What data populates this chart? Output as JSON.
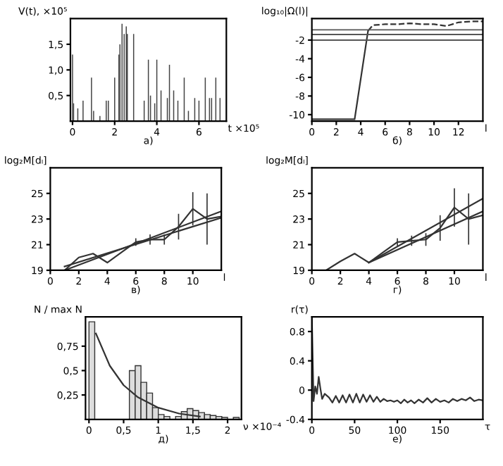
{
  "chart_data": [
    {
      "type": "bar",
      "x": [
        0.0,
        0.05,
        0.25,
        0.5,
        0.9,
        1.0,
        1.3,
        1.6,
        1.7,
        2.0,
        2.2,
        2.25,
        2.35,
        2.45,
        2.55,
        2.6,
        2.9,
        3.4,
        3.6,
        3.7,
        3.9,
        4.0,
        4.2,
        4.5,
        4.6,
        4.8,
        5.0,
        5.3,
        5.5,
        5.8,
        6.0,
        6.3,
        6.5,
        6.6,
        6.8,
        7.0
      ],
      "values": [
        1.3,
        0.35,
        0.25,
        0.4,
        0.85,
        0.2,
        0.1,
        0.4,
        0.4,
        0.85,
        1.3,
        1.5,
        1.9,
        1.7,
        1.85,
        1.7,
        1.7,
        0.4,
        1.2,
        0.5,
        0.35,
        1.2,
        0.6,
        0.45,
        1.1,
        0.6,
        0.4,
        0.85,
        0.2,
        0.45,
        0.4,
        0.85,
        0.45,
        0.45,
        0.85,
        0.45
      ],
      "color": "#444444",
      "xlim": [
        -0.1,
        7.3
      ],
      "ylim": [
        0,
        2
      ],
      "xticks": [
        0,
        2,
        4,
        6
      ],
      "yticks": [
        {
          "value": 0.5,
          "label": "0,5"
        },
        {
          "value": 1.0,
          "label": "1,0"
        },
        {
          "value": 1.5,
          "label": "1,5"
        }
      ],
      "ylabel": "V(t), ×10⁵",
      "xlabel": "t ×10⁵",
      "annotations": [
        "а)"
      ]
    },
    {
      "type": "line",
      "xlim": [
        0,
        14
      ],
      "ylim": [
        -10.7,
        0.3
      ],
      "xticks": [
        0,
        2,
        4,
        6,
        8,
        10,
        12
      ],
      "yticks": [
        -10,
        -8,
        -6,
        -4,
        -2
      ],
      "series": [
        {
          "color": "#333333",
          "line_style": "solid",
          "x": [
            0,
            3.5,
            4.6
          ],
          "values": [
            -10.5,
            -10.5,
            -1
          ]
        },
        {
          "color": "#333333",
          "line_style": "dashed",
          "x": [
            4.6,
            5,
            6,
            7,
            8,
            9,
            10,
            11,
            12,
            13,
            14
          ],
          "values": [
            -1,
            -0.4,
            -0.3,
            -0.3,
            -0.2,
            -0.3,
            -0.3,
            -0.5,
            -0.1,
            0,
            0
          ]
        }
      ],
      "ref_lines": [
        {
          "axis": "y",
          "value": -0.9,
          "color": "#555555"
        },
        {
          "axis": "y",
          "value": -1.4,
          "color": "#555555"
        },
        {
          "axis": "y",
          "value": -2,
          "color": "#555555"
        }
      ],
      "ylabel": "log₁₀|Ω(l)|",
      "xlabel": "l",
      "annotations": [
        "б)"
      ]
    },
    {
      "type": "line",
      "xlim": [
        0,
        12
      ],
      "ylim": [
        19,
        27
      ],
      "xticks": [
        0,
        2,
        4,
        6,
        8,
        10
      ],
      "yticks": [
        19,
        21,
        23,
        25
      ],
      "series": [
        {
          "color": "#333333",
          "x": [
            1,
            2,
            3,
            4,
            5,
            6,
            7,
            8,
            9,
            10,
            11,
            12
          ],
          "values": [
            19,
            20,
            20.3,
            19.6,
            20.4,
            21.2,
            21.4,
            21.4,
            22.4,
            23.8,
            23,
            23.2
          ],
          "errors": [
            null,
            null,
            null,
            null,
            null,
            0.3,
            0.4,
            0.4,
            1,
            1.3,
            2,
            0.2
          ]
        },
        {
          "color": "#333333",
          "x": [
            1,
            12
          ],
          "values": [
            19,
            23.6
          ]
        },
        {
          "color": "#333333",
          "x": [
            1,
            12
          ],
          "values": [
            19.3,
            23.1
          ]
        }
      ],
      "ylabel": "log₂M[dₗ]",
      "xlabel": "l",
      "annotations": [
        "в)"
      ]
    },
    {
      "type": "line",
      "xlim": [
        0,
        12
      ],
      "ylim": [
        19,
        27
      ],
      "xticks": [
        0,
        2,
        4,
        6,
        8,
        10
      ],
      "yticks": [
        19,
        21,
        23,
        25
      ],
      "series": [
        {
          "color": "#333333",
          "x": [
            1,
            2,
            3,
            4,
            5,
            6,
            7,
            8,
            9,
            10,
            11,
            12
          ],
          "values": [
            19,
            19.7,
            20.3,
            19.6,
            20.4,
            21.2,
            21.3,
            21.4,
            22.3,
            23.9,
            23,
            23.3
          ],
          "errors": [
            null,
            null,
            null,
            null,
            null,
            0.3,
            0.4,
            0.5,
            1,
            1.5,
            2,
            null
          ]
        },
        {
          "color": "#333333",
          "x": [
            4,
            12
          ],
          "values": [
            19.6,
            24.6
          ]
        },
        {
          "color": "#333333",
          "x": [
            4,
            12
          ],
          "values": [
            19.6,
            23.6
          ]
        }
      ],
      "ylabel": "log₂M[dₗ]",
      "xlabel": "l",
      "annotations": [
        "г)"
      ]
    },
    {
      "type": "histogram",
      "bins": [
        0,
        0.083,
        0.167,
        0.25,
        0.333,
        0.417,
        0.5,
        0.583,
        0.667,
        0.75,
        0.833,
        0.917,
        1,
        1.083,
        1.167,
        1.25,
        1.333,
        1.417,
        1.5,
        1.583,
        1.667,
        1.75,
        1.833,
        1.917,
        2,
        2.083,
        2.167
      ],
      "values": [
        1.0,
        0,
        0,
        0,
        0,
        0,
        0,
        0.5,
        0.55,
        0.38,
        0.27,
        0.12,
        0.05,
        0.03,
        0,
        0.03,
        0.08,
        0.11,
        0.09,
        0.07,
        0.05,
        0.04,
        0.03,
        0.02,
        0,
        0.02
      ],
      "color": "#dddddd",
      "xlim": [
        -0.05,
        2.2
      ],
      "ylim": [
        0,
        1.05
      ],
      "xticks": [
        0,
        {
          "value": 0.5,
          "label": "0,5"
        },
        1,
        {
          "value": 1.5,
          "label": "1,5"
        },
        2
      ],
      "yticks": [
        {
          "value": 0.25,
          "label": "0,25"
        },
        {
          "value": 0.5,
          "label": "0,5"
        },
        {
          "value": 0.75,
          "label": "0,75"
        }
      ],
      "series": [
        {
          "type": "line",
          "color": "#333333",
          "x": [
            0.1,
            0.3,
            0.5,
            0.7,
            1.0,
            1.3,
            1.6
          ],
          "values": [
            0.88,
            0.55,
            0.35,
            0.23,
            0.12,
            0.06,
            0.03
          ]
        }
      ],
      "ylabel": "N / max N",
      "xlabel": "ν ×10⁻⁴",
      "annotations": [
        "д)"
      ]
    },
    {
      "type": "line",
      "xlim": [
        0,
        200
      ],
      "ylim": [
        -0.4,
        1
      ],
      "xticks": [
        0,
        50,
        100,
        150
      ],
      "yticks": [
        -0.4,
        0,
        0.4,
        0.8
      ],
      "series": [
        {
          "color": "#333333",
          "x": [
            0,
            2,
            4,
            6,
            8,
            10,
            12,
            15,
            20,
            24,
            28,
            32,
            36,
            40,
            44,
            48,
            52,
            56,
            60,
            64,
            68,
            72,
            76,
            80,
            84,
            88,
            92,
            96,
            100,
            104,
            108,
            112,
            116,
            120,
            125,
            130,
            135,
            140,
            145,
            150,
            155,
            160,
            165,
            170,
            175,
            180,
            185,
            190,
            195,
            200
          ],
          "values": [
            1,
            -0.15,
            0.05,
            -0.05,
            0.18,
            0.02,
            -0.12,
            -0.05,
            -0.1,
            -0.17,
            -0.08,
            -0.17,
            -0.07,
            -0.17,
            -0.06,
            -0.17,
            -0.05,
            -0.17,
            -0.06,
            -0.16,
            -0.07,
            -0.16,
            -0.09,
            -0.16,
            -0.12,
            -0.15,
            -0.14,
            -0.16,
            -0.14,
            -0.18,
            -0.13,
            -0.17,
            -0.14,
            -0.18,
            -0.13,
            -0.17,
            -0.11,
            -0.17,
            -0.12,
            -0.16,
            -0.14,
            -0.17,
            -0.12,
            -0.15,
            -0.12,
            -0.14,
            -0.1,
            -0.15,
            -0.13,
            -0.14
          ]
        }
      ],
      "ylabel": "r(τ)",
      "xlabel": "τ",
      "annotations": [
        "е)"
      ]
    }
  ]
}
